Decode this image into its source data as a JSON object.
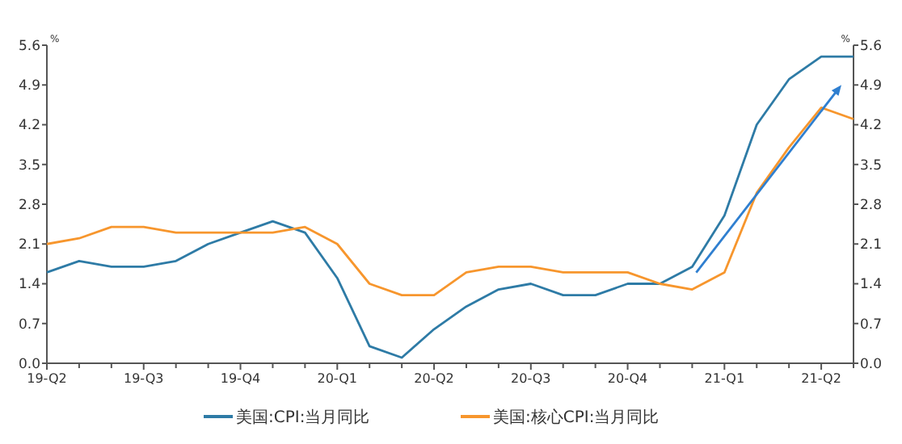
{
  "chart_data": {
    "type": "line",
    "categories": [
      "19-Q2",
      null,
      null,
      "19-Q3",
      null,
      null,
      "19-Q4",
      null,
      null,
      "20-Q1",
      null,
      null,
      "20-Q2",
      null,
      null,
      "20-Q3",
      null,
      null,
      "20-Q4",
      null,
      null,
      "21-Q1",
      null,
      null,
      "21-Q2",
      null
    ],
    "series": [
      {
        "name": "美国:CPI:当月同比",
        "color": "#2e7ba6",
        "values": [
          1.6,
          1.8,
          1.7,
          1.7,
          1.8,
          2.1,
          2.3,
          2.5,
          2.3,
          1.5,
          0.3,
          0.1,
          0.6,
          1.0,
          1.3,
          1.4,
          1.2,
          1.2,
          1.4,
          1.4,
          1.7,
          2.6,
          4.2,
          5.0,
          5.4,
          5.4
        ]
      },
      {
        "name": "美国:核心CPI:当月同比",
        "color": "#f7962d",
        "values": [
          2.1,
          2.2,
          2.4,
          2.4,
          2.3,
          2.3,
          2.3,
          2.3,
          2.4,
          2.1,
          1.4,
          1.2,
          1.2,
          1.6,
          1.7,
          1.7,
          1.6,
          1.6,
          1.6,
          1.4,
          1.3,
          1.6,
          3.0,
          3.8,
          4.5,
          4.3
        ]
      }
    ],
    "ylabel": "%",
    "y2label": "%",
    "ylim": [
      0,
      5.6
    ],
    "yticks": [
      {
        "value": 0,
        "label": "0.0"
      },
      0.7,
      1.4,
      2.1,
      2.8,
      3.5,
      4.2,
      4.9,
      5.6
    ],
    "y2lim": [
      0,
      5.6
    ],
    "y2ticks": [
      {
        "value": 0,
        "label": "0.0"
      },
      0.7,
      1.4,
      2.1,
      2.8,
      3.5,
      4.2,
      4.9,
      5.6
    ],
    "grid": false,
    "legend": "bottom",
    "marker": "none",
    "line_style": "solid"
  }
}
